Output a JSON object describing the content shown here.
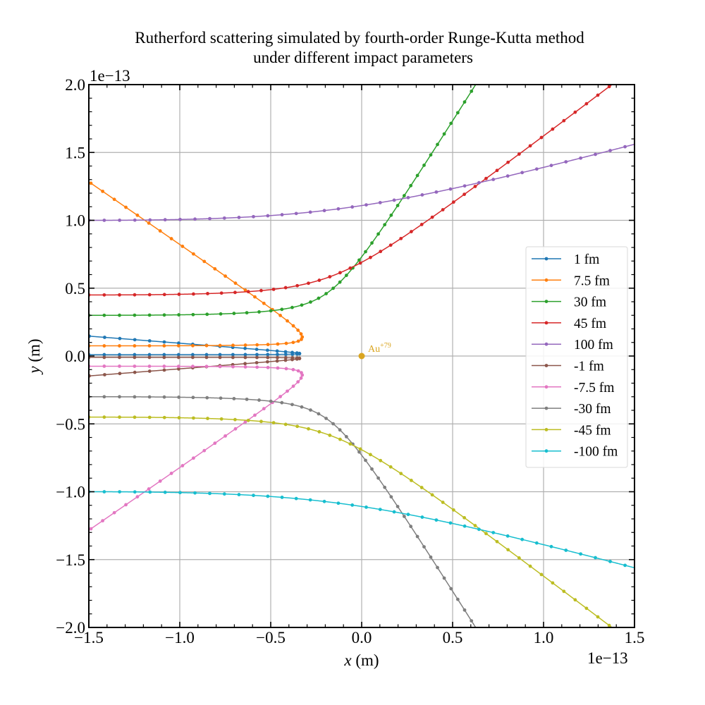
{
  "chart_data": {
    "type": "line",
    "title": "Rutherford scattering simulated by fourth-order Runge-Kutta method\nunder different impact parameters",
    "title_lines": [
      "Rutherford scattering simulated by fourth-order Runge-Kutta method",
      "under different impact parameters"
    ],
    "xlabel": "x (m)",
    "ylabel": "y (m)",
    "xlim": [
      -1.5e-13,
      1.5e-13
    ],
    "ylim": [
      -2e-13,
      2e-13
    ],
    "x_offset_label": "1e−13",
    "y_offset_label": "1e−13",
    "x_ticks": [
      -1.5,
      -1.0,
      -0.5,
      0.0,
      0.5,
      1.0,
      1.5
    ],
    "x_tick_labels": [
      "−1.5",
      "−1.0",
      "−0.5",
      "0.0",
      "0.5",
      "1.0",
      "1.5"
    ],
    "y_ticks": [
      -2.0,
      -1.5,
      -1.0,
      -0.5,
      0.0,
      0.5,
      1.0,
      1.5,
      2.0
    ],
    "y_tick_labels": [
      "−2.0",
      "−1.5",
      "−1.0",
      "−0.5",
      "0.0",
      "0.5",
      "1.0",
      "1.5",
      "2.0"
    ],
    "grid": true,
    "legend_position": "center-right",
    "simulation": {
      "method": "RK4",
      "start_x": -1.5e-13,
      "closest_head_on_distance": 4.4e-14
    },
    "nucleus": {
      "label": "Au",
      "charge_label": "+79",
      "x": 0.0,
      "y": 0.0,
      "color": "#DAA520"
    },
    "series": [
      {
        "name": "1 fm",
        "impact_parameter_fm": 1,
        "color": "#1f77b4"
      },
      {
        "name": "7.5 fm",
        "impact_parameter_fm": 7.5,
        "color": "#ff7f0e"
      },
      {
        "name": "30 fm",
        "impact_parameter_fm": 30,
        "color": "#2ca02c"
      },
      {
        "name": "45 fm",
        "impact_parameter_fm": 45,
        "color": "#d62728"
      },
      {
        "name": "100 fm",
        "impact_parameter_fm": 100,
        "color": "#9467bd"
      },
      {
        "name": "-1 fm",
        "impact_parameter_fm": -1,
        "color": "#8c564b"
      },
      {
        "name": "-7.5 fm",
        "impact_parameter_fm": -7.5,
        "color": "#e377c2"
      },
      {
        "name": "-30 fm",
        "impact_parameter_fm": -30,
        "color": "#7f7f7f"
      },
      {
        "name": "-45 fm",
        "impact_parameter_fm": -45,
        "color": "#bcbd22"
      },
      {
        "name": "-100 fm",
        "impact_parameter_fm": -100,
        "color": "#17becf"
      }
    ]
  }
}
